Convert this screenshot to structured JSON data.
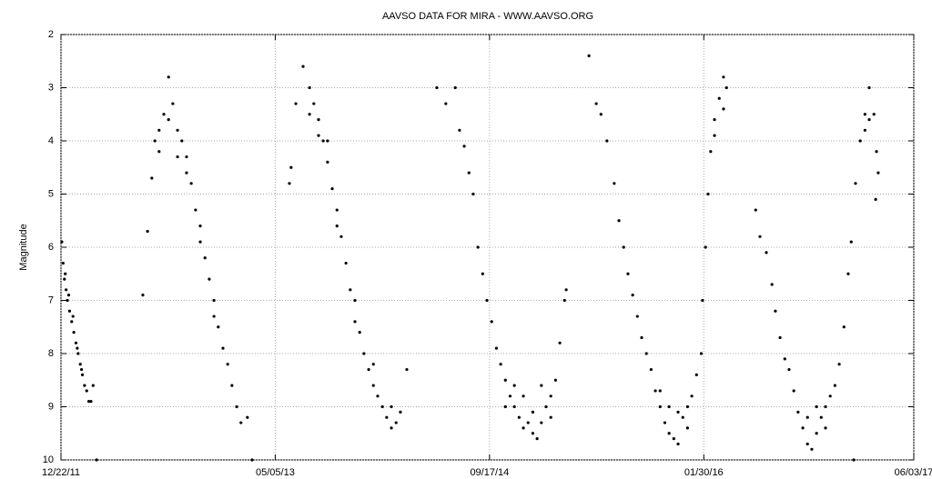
{
  "chart_data": {
    "type": "scatter",
    "title": "AAVSO DATA FOR MIRA - WWW.AAVSO.ORG",
    "y_label": "Magnitude",
    "xlim": [
      "2011-12-22",
      "2017-06-03"
    ],
    "xticks": [
      {
        "value": "2011-12-22",
        "label": "12/22/11"
      },
      {
        "value": "2013-05-05",
        "label": "05/05/13"
      },
      {
        "value": "2014-09-17",
        "label": "09/17/14"
      },
      {
        "value": "2016-01-30",
        "label": "01/30/16"
      },
      {
        "value": "2017-06-03",
        "label": "06/03/17"
      }
    ],
    "ylim": [
      10,
      2
    ],
    "yticks": [
      2,
      3,
      4,
      5,
      6,
      7,
      8,
      9,
      10
    ],
    "grid": true,
    "series": [
      {
        "color": "#000000",
        "x": [
          "2011-12-24",
          "2011-12-27",
          "2011-12-30",
          "2012-01-01",
          "2012-01-03",
          "2012-01-06",
          "2012-01-09",
          "2012-01-11",
          "2012-01-16",
          "2012-01-19",
          "2012-01-21",
          "2012-01-26",
          "2012-01-29",
          "2012-01-31",
          "2012-02-05",
          "2012-02-08",
          "2012-02-10",
          "2012-02-15",
          "2012-02-20",
          "2012-02-25",
          "2012-03-01",
          "2012-03-06",
          "2012-03-14",
          "2012-06-30",
          "2012-07-11",
          "2012-07-21",
          "2012-07-28",
          "2012-08-07",
          "2012-08-07",
          "2012-08-18",
          "2012-08-29",
          "2012-08-29",
          "2012-09-08",
          "2012-09-19",
          "2012-09-19",
          "2012-09-29",
          "2012-10-10",
          "2012-10-10",
          "2012-10-21",
          "2012-10-31",
          "2012-11-11",
          "2012-11-11",
          "2012-11-22",
          "2012-12-02",
          "2012-12-13",
          "2012-12-13",
          "2012-12-23",
          "2013-01-03",
          "2013-01-14",
          "2013-01-24",
          "2013-02-04",
          "2013-02-14",
          "2013-03-01",
          "2013-03-12",
          "2013-06-07",
          "2013-06-11",
          "2013-06-22",
          "2013-07-09",
          "2013-07-24",
          "2013-07-24",
          "2013-08-03",
          "2013-08-14",
          "2013-08-14",
          "2013-08-25",
          "2013-09-04",
          "2013-09-04",
          "2013-09-15",
          "2013-09-26",
          "2013-09-26",
          "2013-10-06",
          "2013-10-17",
          "2013-10-27",
          "2013-11-07",
          "2013-11-07",
          "2013-11-18",
          "2013-11-28",
          "2013-12-09",
          "2013-12-20",
          "2013-12-20",
          "2013-12-30",
          "2014-01-10",
          "2014-01-20",
          "2014-01-31",
          "2014-01-31",
          "2014-02-11",
          "2014-02-21",
          "2014-03-08",
          "2014-05-17",
          "2014-06-07",
          "2014-06-29",
          "2014-07-09",
          "2014-07-20",
          "2014-07-31",
          "2014-08-10",
          "2014-08-21",
          "2014-09-01",
          "2014-09-11",
          "2014-09-22",
          "2014-10-03",
          "2014-10-13",
          "2014-10-24",
          "2014-10-24",
          "2014-11-04",
          "2014-11-14",
          "2014-11-14",
          "2014-11-25",
          "2014-12-05",
          "2014-12-05",
          "2014-12-16",
          "2014-12-27",
          "2014-12-27",
          "2015-01-06",
          "2015-01-16",
          "2015-01-16",
          "2015-01-27",
          "2015-02-07",
          "2015-02-07",
          "2015-02-18",
          "2015-02-28",
          "2015-03-11",
          "2015-03-15",
          "2015-05-07",
          "2015-05-24",
          "2015-06-04",
          "2015-06-18",
          "2015-07-05",
          "2015-07-16",
          "2015-07-27",
          "2015-08-06",
          "2015-08-17",
          "2015-08-28",
          "2015-09-07",
          "2015-09-18",
          "2015-09-29",
          "2015-10-09",
          "2015-10-20",
          "2015-10-20",
          "2015-10-31",
          "2015-11-10",
          "2015-11-10",
          "2015-11-21",
          "2015-12-01",
          "2015-12-01",
          "2015-12-12",
          "2015-12-23",
          "2015-12-23",
          "2016-01-02",
          "2016-01-13",
          "2016-01-24",
          "2016-01-27",
          "2016-02-03",
          "2016-02-09",
          "2016-02-15",
          "2016-02-24",
          "2016-02-24",
          "2016-03-06",
          "2016-03-16",
          "2016-03-16",
          "2016-03-23",
          "2016-05-30",
          "2016-06-09",
          "2016-06-24",
          "2016-07-07",
          "2016-07-15",
          "2016-07-26",
          "2016-08-06",
          "2016-08-16",
          "2016-08-27",
          "2016-09-06",
          "2016-09-17",
          "2016-09-28",
          "2016-09-28",
          "2016-10-08",
          "2016-10-19",
          "2016-10-19",
          "2016-10-30",
          "2016-11-09",
          "2016-11-09",
          "2016-11-20",
          "2016-12-01",
          "2016-12-11",
          "2016-12-22",
          "2017-01-01",
          "2017-01-08",
          "2017-01-14",
          "2017-01-18",
          "2017-01-29",
          "2017-02-09",
          "2017-02-09",
          "2017-02-19",
          "2017-02-19",
          "2017-03-02",
          "2017-03-06",
          "2017-03-08",
          "2017-03-12"
        ],
        "values": [
          5.9,
          6.3,
          6.6,
          6.5,
          6.8,
          7.0,
          6.9,
          7.2,
          7.4,
          7.3,
          7.6,
          7.8,
          7.9,
          8.0,
          8.2,
          8.3,
          8.4,
          8.6,
          8.7,
          8.9,
          8.9,
          8.6,
          10.0,
          6.9,
          5.7,
          4.7,
          4.0,
          3.8,
          4.2,
          3.5,
          2.8,
          3.6,
          3.3,
          3.8,
          4.3,
          4.0,
          4.3,
          4.6,
          4.8,
          5.3,
          5.6,
          5.9,
          6.2,
          6.6,
          7.0,
          7.3,
          7.5,
          7.9,
          8.2,
          8.6,
          9.0,
          9.3,
          9.2,
          10.0,
          4.8,
          4.5,
          3.3,
          2.6,
          3.0,
          3.5,
          3.3,
          3.6,
          3.9,
          4.0,
          4.4,
          4.0,
          4.9,
          5.3,
          5.6,
          5.8,
          6.3,
          6.8,
          7.0,
          7.4,
          7.6,
          8.0,
          8.3,
          8.6,
          8.2,
          8.8,
          9.0,
          9.2,
          9.4,
          9.0,
          9.3,
          9.1,
          8.3,
          3.0,
          3.3,
          3.0,
          3.8,
          4.1,
          4.6,
          5.0,
          6.0,
          6.5,
          7.0,
          7.4,
          7.9,
          8.2,
          8.5,
          9.0,
          8.8,
          9.0,
          8.6,
          9.2,
          9.4,
          8.8,
          9.3,
          9.5,
          9.1,
          9.6,
          9.3,
          8.6,
          9.0,
          8.8,
          9.2,
          8.5,
          7.8,
          7.0,
          6.8,
          2.4,
          3.3,
          3.5,
          4.0,
          4.8,
          5.5,
          6.0,
          6.5,
          6.9,
          7.3,
          7.7,
          8.0,
          8.3,
          8.7,
          9.0,
          8.7,
          9.3,
          9.5,
          9.0,
          9.6,
          9.7,
          9.1,
          9.2,
          9.0,
          9.4,
          8.8,
          8.4,
          8.0,
          7.0,
          6.0,
          5.0,
          4.2,
          3.6,
          3.9,
          3.2,
          2.8,
          3.4,
          3.0,
          5.3,
          5.8,
          6.1,
          6.7,
          7.2,
          7.7,
          8.1,
          8.3,
          8.7,
          9.1,
          9.4,
          9.7,
          9.2,
          9.8,
          9.5,
          9.0,
          9.2,
          9.0,
          9.4,
          8.8,
          8.6,
          8.2,
          7.5,
          6.5,
          5.9,
          10.0,
          4.8,
          4.0,
          3.5,
          3.8,
          3.0,
          3.6,
          3.5,
          5.1,
          4.2,
          4.6
        ]
      }
    ]
  }
}
